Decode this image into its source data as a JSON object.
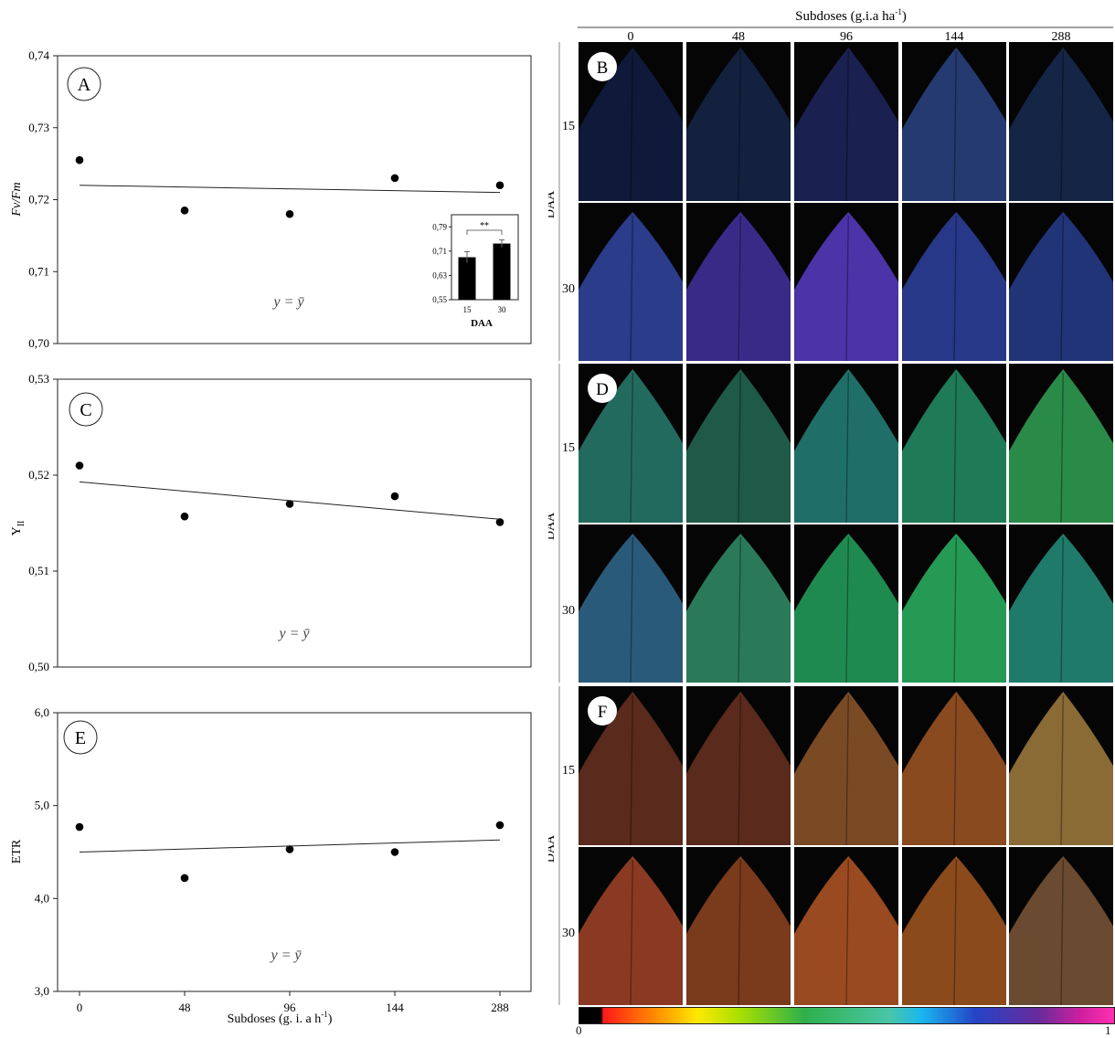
{
  "header": {
    "title": "Subdoses (g.i.a ha",
    "title_sup": "-1",
    "title_close": ")",
    "columns": [
      "0",
      "48",
      "96",
      "144",
      "288"
    ]
  },
  "chart_data": [
    {
      "type": "scatter",
      "panel": "A",
      "ylabel": "Fv/Fm",
      "xlabel": "",
      "categories": [
        "0",
        "48",
        "96",
        "144",
        "288"
      ],
      "values": [
        0.7255,
        0.7185,
        0.718,
        0.723,
        0.722
      ],
      "trend": [
        0.722,
        0.721
      ],
      "yticks": [
        "0,70",
        "0,71",
        "0,72",
        "0,73",
        "0,74"
      ],
      "ylim": [
        0.7,
        0.74
      ],
      "equation": "y = ȳ",
      "inset": {
        "type": "bar",
        "xlabel": "DAA",
        "categories": [
          "15",
          "30"
        ],
        "values": [
          0.69,
          0.735
        ],
        "errors": [
          0.018,
          0.012
        ],
        "significance": "**",
        "yticks": [
          "0,55",
          "0,63",
          "0,71",
          "0,79"
        ],
        "ylim": [
          0.55,
          0.83
        ]
      }
    },
    {
      "type": "scatter",
      "panel": "C",
      "ylabel": "Y",
      "ylabel_sub": "II",
      "xlabel": "",
      "categories": [
        "0",
        "48",
        "96",
        "144",
        "288"
      ],
      "values": [
        0.521,
        0.5157,
        0.517,
        0.5178,
        0.5151
      ],
      "trend": [
        0.5193,
        0.5154
      ],
      "yticks": [
        "0,50",
        "0,51",
        "0,52",
        "0,53"
      ],
      "ylim": [
        0.5,
        0.53
      ],
      "equation": "y = ȳ"
    },
    {
      "type": "scatter",
      "panel": "E",
      "ylabel": "ETR",
      "xlabel": "Subdoses (g. i. a h",
      "xlabel_sup": "-1",
      "xlabel_close": ")",
      "categories": [
        "0",
        "48",
        "96",
        "144",
        "288"
      ],
      "values": [
        4.77,
        4.22,
        4.53,
        4.5,
        4.79
      ],
      "trend": [
        4.5,
        4.63
      ],
      "yticks": [
        "3,0",
        "4,0",
        "5,0",
        "6,0"
      ],
      "ylim": [
        3.0,
        6.0
      ],
      "equation": "y = ȳ"
    }
  ],
  "images": {
    "panels": [
      {
        "letter": "B",
        "axis_label": "DAA",
        "rows": [
          "15",
          "30"
        ],
        "colors": [
          [
            "#0f1a3a",
            "#13203e",
            "#1a2050",
            "#253a70",
            "#142546"
          ],
          [
            "#2a3c8a",
            "#3a2a88",
            "#4a34a8",
            "#283888",
            "#223478"
          ]
        ]
      },
      {
        "letter": "D",
        "axis_label": "DAA",
        "rows": [
          "15",
          "30"
        ],
        "colors": [
          [
            "#236a5e",
            "#1f5a48",
            "#1f6f68",
            "#1f7a58",
            "#2a8a48"
          ],
          [
            "#2a5a7a",
            "#2a7a5a",
            "#1f8a50",
            "#259a55",
            "#1f7a6a"
          ]
        ]
      },
      {
        "letter": "F",
        "axis_label": "DAA",
        "rows": [
          "15",
          "30"
        ],
        "colors": [
          [
            "#5a2a1c",
            "#5a2a1c",
            "#7a4a25",
            "#8a4a20",
            "#8a6a35"
          ],
          [
            "#8a3a22",
            "#7a3a1c",
            "#9a4a20",
            "#8a4a1c",
            "#6a4a30"
          ]
        ]
      }
    ]
  },
  "colorbar": {
    "min_label": "0",
    "max_label": "1"
  }
}
